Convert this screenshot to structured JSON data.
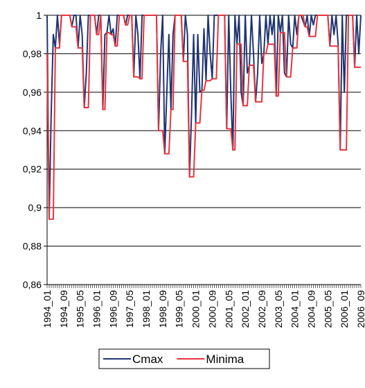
{
  "chart_data": {
    "type": "line",
    "categories": [
      "1994_01",
      null,
      null,
      null,
      null,
      null,
      null,
      null,
      "1994_09",
      null,
      null,
      null,
      null,
      null,
      null,
      null,
      "1995_05",
      null,
      null,
      null,
      null,
      null,
      null,
      null,
      "1996_01",
      null,
      null,
      null,
      null,
      null,
      null,
      null,
      "1996_09",
      null,
      null,
      null,
      null,
      null,
      null,
      null,
      "1997_05",
      null,
      null,
      null,
      null,
      null,
      null,
      null,
      "1998_01",
      null,
      null,
      null,
      null,
      null,
      null,
      null,
      "1998_09",
      null,
      null,
      null,
      null,
      null,
      null,
      null,
      "1999_05",
      null,
      null,
      null,
      null,
      null,
      null,
      null,
      "2000_01",
      null,
      null,
      null,
      null,
      null,
      null,
      null,
      "2000_09",
      null,
      null,
      null,
      null,
      null,
      null,
      null,
      "2001_05",
      null,
      null,
      null,
      null,
      null,
      null,
      null,
      "2002_01",
      null,
      null,
      null,
      null,
      null,
      null,
      null,
      "2002_09",
      null,
      null,
      null,
      null,
      null,
      null,
      null,
      "2003_05",
      null,
      null,
      null,
      null,
      null,
      null,
      null,
      "2004_01",
      null,
      null,
      null,
      null,
      null,
      null,
      null,
      "2004_09",
      null,
      null,
      null,
      null,
      null,
      null,
      null,
      "2005_05",
      null,
      null,
      null,
      null,
      null,
      null,
      null,
      "2006_01",
      null,
      null,
      null,
      null,
      null,
      null,
      null,
      "2006_09"
    ],
    "series": [
      {
        "name": "Cmax",
        "color": "#1f3470",
        "values": [
          1,
          0.894,
          0.95,
          0.99,
          0.983,
          1,
          0.985,
          1,
          1,
          1,
          1,
          1,
          0.994,
          1,
          1,
          0.983,
          1,
          0.99,
          0.952,
          0.97,
          1,
          1,
          1,
          1,
          0.99,
          1,
          1,
          0.951,
          0.99,
          0.991,
          1,
          0.99,
          0.993,
          0.984,
          1,
          1,
          1,
          1,
          0.995,
          1,
          1,
          1,
          0.968,
          1,
          0.99,
          0.967,
          1,
          1,
          1,
          1,
          1,
          1,
          1,
          1,
          0.94,
          0.98,
          1,
          0.928,
          0.96,
          0.99,
          0.951,
          0.99,
          1,
          1,
          1,
          1,
          0.976,
          1,
          0.99,
          0.916,
          0.95,
          0.99,
          0.944,
          0.99,
          0.96,
          0.961,
          0.993,
          0.966,
          1,
          0.98,
          0.967,
          1,
          1,
          1,
          1,
          1,
          1,
          0.941,
          1,
          0.96,
          0.93,
          1,
          0.985,
          1,
          0.96,
          0.953,
          1,
          0.97,
          0.974,
          1,
          0.98,
          0.955,
          0.97,
          1,
          0.975,
          0.98,
          1,
          0.985,
          1,
          0.99,
          1,
          0.958,
          1,
          0.991,
          1,
          0.97,
          0.968,
          1,
          0.985,
          0.983,
          1,
          0.99,
          1,
          1,
          0.997,
          0.994,
          1,
          0.989,
          1,
          0.995,
          1,
          1,
          1,
          1,
          1,
          1,
          1,
          0.984,
          1,
          0.99,
          1,
          0.985,
          0.93,
          1,
          0.96,
          1,
          1,
          1,
          1,
          0.973,
          1,
          0.98,
          1
        ]
      },
      {
        "name": "Minima",
        "color": "#e8343c",
        "values": [
          0.98,
          0.894,
          0.894,
          0.894,
          0.983,
          0.983,
          0.983,
          1,
          1,
          1,
          1,
          1,
          0.994,
          0.994,
          0.994,
          0.983,
          0.983,
          0.983,
          0.952,
          0.952,
          0.952,
          1,
          1,
          1,
          0.99,
          0.99,
          1,
          0.951,
          0.951,
          0.991,
          0.991,
          0.99,
          0.99,
          0.984,
          0.984,
          1,
          1,
          1,
          0.995,
          0.995,
          1,
          1,
          0.968,
          0.968,
          0.968,
          0.967,
          0.967,
          1,
          1,
          1,
          1,
          1,
          1,
          1,
          0.94,
          0.94,
          0.94,
          0.928,
          0.928,
          0.928,
          0.951,
          0.951,
          1,
          1,
          1,
          1,
          0.976,
          0.976,
          0.976,
          0.916,
          0.916,
          0.916,
          0.944,
          0.944,
          0.944,
          0.961,
          0.961,
          0.966,
          0.966,
          0.966,
          0.967,
          0.967,
          0.967,
          1,
          1,
          1,
          1,
          0.941,
          0.941,
          0.941,
          0.93,
          0.93,
          0.985,
          0.985,
          0.985,
          0.953,
          0.953,
          0.953,
          0.974,
          0.974,
          0.974,
          0.955,
          0.955,
          0.955,
          0.955,
          0.98,
          0.98,
          0.985,
          0.985,
          0.985,
          0.985,
          0.958,
          0.958,
          0.991,
          0.991,
          0.991,
          0.968,
          0.968,
          0.968,
          0.983,
          0.983,
          0.983,
          1,
          1,
          1,
          0.994,
          0.994,
          0.989,
          0.989,
          0.989,
          0.989,
          1,
          1,
          1,
          1,
          1,
          1,
          0.984,
          0.984,
          0.984,
          0.984,
          0.984,
          0.93,
          0.93,
          0.93,
          0.93,
          1,
          1,
          1,
          0.973,
          0.973,
          0.973,
          0.973
        ]
      }
    ],
    "ylim": [
      0.86,
      1
    ],
    "yticks": [
      {
        "value": 0.86,
        "label": "0,86"
      },
      {
        "value": 0.88,
        "label": "0,88"
      },
      {
        "value": 0.9,
        "label": "0,9"
      },
      {
        "value": 0.92,
        "label": "0,92"
      },
      {
        "value": 0.94,
        "label": "0,94"
      },
      {
        "value": 0.96,
        "label": "0,96"
      },
      {
        "value": 0.98,
        "label": "0,98"
      },
      1
    ],
    "grid": true,
    "legend": "bottom"
  }
}
